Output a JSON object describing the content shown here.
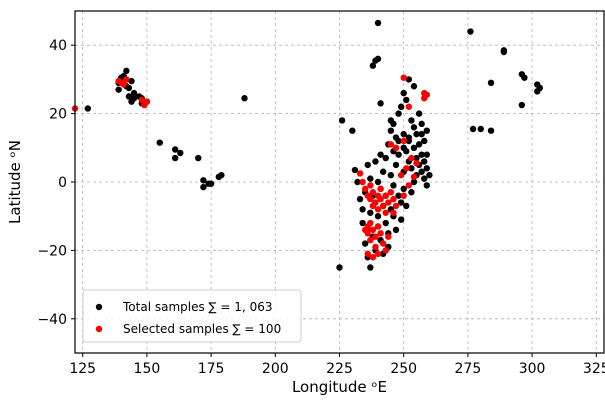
{
  "chart_data": {
    "type": "scatter",
    "xlabel": "Longitude ᵒE",
    "ylabel": "Latitude ᵒN",
    "xlim": [
      122,
      328
    ],
    "ylim": [
      -50,
      50
    ],
    "xticks": [
      125,
      150,
      175,
      200,
      225,
      250,
      275,
      300,
      325
    ],
    "yticks": [
      -40,
      -20,
      0,
      20,
      40
    ],
    "grid": true,
    "legend_position": "lower-left",
    "series": [
      {
        "name": "Total samples ∑ = 1, 063",
        "color": "#000000",
        "points": [
          [
            127,
            21.5
          ],
          [
            139,
            27
          ],
          [
            139,
            29
          ],
          [
            140,
            30.5
          ],
          [
            141,
            31
          ],
          [
            142,
            32.5
          ],
          [
            142,
            28
          ],
          [
            143,
            25
          ],
          [
            143,
            27.5
          ],
          [
            144,
            29.5
          ],
          [
            144,
            23.5
          ],
          [
            145,
            26
          ],
          [
            145,
            24.5
          ],
          [
            147,
            25
          ],
          [
            148,
            23
          ],
          [
            148,
            24.5
          ],
          [
            150,
            23.5
          ],
          [
            155,
            11.5
          ],
          [
            161,
            9.5
          ],
          [
            161,
            7
          ],
          [
            163,
            8.5
          ],
          [
            170,
            7
          ],
          [
            172,
            0.5
          ],
          [
            172,
            -1.5
          ],
          [
            174,
            -0.5
          ],
          [
            175,
            -0.5
          ],
          [
            178,
            1.5
          ],
          [
            179,
            2
          ],
          [
            188,
            24.5
          ],
          [
            225,
            -25
          ],
          [
            226,
            18
          ],
          [
            230,
            15
          ],
          [
            231,
            3.5
          ],
          [
            232,
            0
          ],
          [
            240,
            46.5
          ],
          [
            238,
            34
          ],
          [
            239,
            35.5
          ],
          [
            240,
            36
          ],
          [
            241,
            23
          ],
          [
            245,
            18
          ],
          [
            246,
            17
          ],
          [
            248,
            20
          ],
          [
            249,
            22
          ],
          [
            250,
            26
          ],
          [
            251,
            24
          ],
          [
            252,
            30
          ],
          [
            253,
            18
          ],
          [
            254,
            16
          ],
          [
            254,
            28
          ],
          [
            256,
            20
          ],
          [
            257,
            14
          ],
          [
            258,
            12
          ],
          [
            259,
            8
          ],
          [
            259,
            4
          ],
          [
            260,
            2
          ],
          [
            233,
            -5
          ],
          [
            234,
            -8
          ],
          [
            234,
            -12
          ],
          [
            235,
            -3
          ],
          [
            235,
            -18
          ],
          [
            236,
            -14
          ],
          [
            236,
            -22
          ],
          [
            237,
            -9
          ],
          [
            237,
            -25
          ],
          [
            238,
            -16
          ],
          [
            238,
            -4
          ],
          [
            239,
            -20
          ],
          [
            239,
            -6
          ],
          [
            240,
            -10
          ],
          [
            240,
            0
          ],
          [
            240,
            -13
          ],
          [
            241,
            -2
          ],
          [
            241,
            -17
          ],
          [
            242,
            -7
          ],
          [
            242,
            -21
          ],
          [
            242,
            3
          ],
          [
            243,
            -12
          ],
          [
            243,
            -4
          ],
          [
            244,
            -15
          ],
          [
            244,
            -19
          ],
          [
            245,
            2
          ],
          [
            245,
            -8
          ],
          [
            246,
            -1
          ],
          [
            246,
            -10
          ],
          [
            247,
            5
          ],
          [
            247,
            -14
          ],
          [
            248,
            -4
          ],
          [
            248,
            8
          ],
          [
            249,
            -11
          ],
          [
            249,
            -6
          ],
          [
            250,
            3
          ],
          [
            250,
            -2
          ],
          [
            251,
            9
          ],
          [
            251,
            -7
          ],
          [
            252,
            6
          ],
          [
            252,
            12
          ],
          [
            253,
            4
          ],
          [
            253,
            -3
          ],
          [
            254,
            10
          ],
          [
            254,
            0
          ],
          [
            255,
            7
          ],
          [
            255,
            2
          ],
          [
            256,
            5
          ],
          [
            256,
            11
          ],
          [
            257,
            3
          ],
          [
            257,
            8
          ],
          [
            258,
            6
          ],
          [
            258,
            1
          ],
          [
            259,
            -1
          ],
          [
            244,
            11
          ],
          [
            245,
            15
          ],
          [
            247,
            13
          ],
          [
            250,
            14
          ],
          [
            236,
            5
          ],
          [
            237,
            1
          ],
          [
            239,
            6
          ],
          [
            241,
            8
          ],
          [
            243,
            7
          ],
          [
            246,
            9
          ],
          [
            248,
            12
          ],
          [
            250,
            10
          ],
          [
            252,
            13
          ],
          [
            255,
            14
          ],
          [
            257,
            17
          ],
          [
            259,
            15
          ],
          [
            276,
            44
          ],
          [
            277,
            15.5
          ],
          [
            280,
            15.5
          ],
          [
            284,
            29
          ],
          [
            284,
            15
          ],
          [
            289,
            38.5
          ],
          [
            289,
            38
          ],
          [
            296,
            31.5
          ],
          [
            296,
            22.5
          ],
          [
            297,
            30.5
          ],
          [
            302,
            28.5
          ],
          [
            302,
            26.5
          ],
          [
            303,
            27.5
          ]
        ]
      },
      {
        "name": "Selected samples ∑ = 100",
        "color": "#ff0000",
        "points": [
          [
            122,
            21.5
          ],
          [
            139,
            29.5
          ],
          [
            140,
            29
          ],
          [
            141,
            28.5
          ],
          [
            142,
            30
          ],
          [
            148,
            24
          ],
          [
            149,
            22.5
          ],
          [
            150,
            23.5
          ],
          [
            233,
            2.5
          ],
          [
            234,
            0
          ],
          [
            235,
            -2
          ],
          [
            236,
            -4
          ],
          [
            237,
            -1
          ],
          [
            237,
            -5
          ],
          [
            238,
            -7
          ],
          [
            238,
            -3
          ],
          [
            239,
            -6
          ],
          [
            240,
            -4
          ],
          [
            240,
            -8
          ],
          [
            241,
            -2
          ],
          [
            241,
            -5
          ],
          [
            242,
            -7
          ],
          [
            243,
            -4
          ],
          [
            243,
            -9
          ],
          [
            244,
            -6
          ],
          [
            245,
            -3
          ],
          [
            246,
            -5
          ],
          [
            247,
            -7
          ],
          [
            236,
            -13
          ],
          [
            236,
            -15
          ],
          [
            237,
            -12
          ],
          [
            237,
            -17
          ],
          [
            238,
            -14
          ],
          [
            239,
            -16
          ],
          [
            239,
            -19
          ],
          [
            240,
            -13
          ],
          [
            240,
            -21
          ],
          [
            241,
            -15
          ],
          [
            242,
            -18
          ],
          [
            243,
            -20
          ],
          [
            244,
            -16
          ],
          [
            235,
            -14
          ],
          [
            236,
            -21
          ],
          [
            238,
            -22
          ],
          [
            250,
            30.5
          ],
          [
            252,
            22
          ],
          [
            254,
            1.5
          ],
          [
            255,
            5.5
          ],
          [
            253,
            7
          ],
          [
            251,
            4
          ],
          [
            252,
            -1
          ],
          [
            249,
            2
          ],
          [
            250,
            -4
          ],
          [
            246,
            -9
          ],
          [
            247,
            10
          ],
          [
            258,
            24.5
          ],
          [
            259,
            25.5
          ],
          [
            258,
            26
          ],
          [
            250,
            12
          ],
          [
            245,
            11
          ]
        ]
      }
    ]
  }
}
